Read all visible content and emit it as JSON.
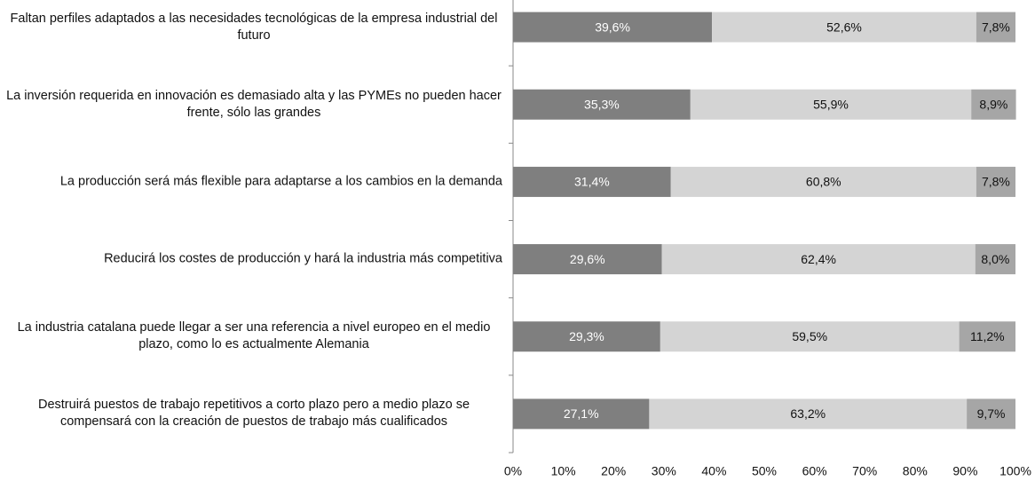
{
  "chart_data": {
    "type": "stacked-bar-horizontal",
    "categories": [
      "Faltan perfiles adaptados a las necesidades tecnológicas de la empresa industrial del futuro",
      "La inversión requerida en innovación es demasiado alta y las PYMEs no pueden hacer frente, sólo las grandes",
      "La producción será más flexible para adaptarse a los cambios en la demanda",
      "Reducirá los costes de producción y hará la industria más competitiva",
      "La industria catalana puede llegar a ser una referencia a nivel europeo en el medio plazo, como lo es actualmente Alemania",
      "Destruirá puestos de trabajo repetitivos a corto plazo pero a medio plazo se compensará con la creación de puestos de trabajo más cualificados"
    ],
    "series": [
      {
        "color": "#7f7f7f",
        "values": [
          39.6,
          35.3,
          31.4,
          29.6,
          29.3,
          27.1
        ],
        "value_labels": [
          "39,6%",
          "35,3%",
          "31,4%",
          "29,6%",
          "29,3%",
          "27,1%"
        ]
      },
      {
        "color": "#d4d4d4",
        "values": [
          52.6,
          55.9,
          60.8,
          62.4,
          59.5,
          63.2
        ],
        "value_labels": [
          "52,6%",
          "55,9%",
          "60,8%",
          "62,4%",
          "59,5%",
          "63,2%"
        ]
      },
      {
        "color": "#a6a6a6",
        "values": [
          7.8,
          8.9,
          7.8,
          8.0,
          11.2,
          9.7
        ],
        "value_labels": [
          "7,8%",
          "8,9%",
          "7,8%",
          "8,0%",
          "11,2%",
          "9,7%"
        ]
      }
    ],
    "xlim": [
      0,
      100
    ],
    "xticks": [
      {
        "value": 0,
        "label": "0%"
      },
      {
        "value": 10,
        "label": "10%"
      },
      {
        "value": 20,
        "label": "20%"
      },
      {
        "value": 30,
        "label": "30%"
      },
      {
        "value": 40,
        "label": "40%"
      },
      {
        "value": 50,
        "label": "50%"
      },
      {
        "value": 60,
        "label": "60%"
      },
      {
        "value": 70,
        "label": "70%"
      },
      {
        "value": 80,
        "label": "80%"
      },
      {
        "value": 90,
        "label": "90%"
      },
      {
        "value": 100,
        "label": "100%"
      }
    ]
  }
}
